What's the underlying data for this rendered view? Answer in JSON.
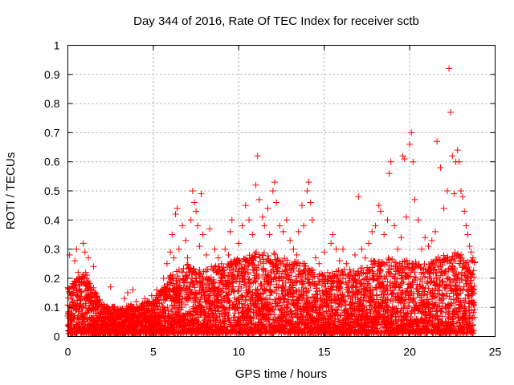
{
  "chart_data": {
    "type": "scatter",
    "title": "Day 344 of 2016, Rate Of TEC Index for receiver sctb",
    "xlabel": "GPS time / hours",
    "ylabel": "ROTI / TECUs",
    "xlim": [
      0,
      25
    ],
    "ylim": [
      0,
      1
    ],
    "xticks": [
      0,
      5,
      10,
      15,
      20,
      25
    ],
    "xtick_labels": [
      "0",
      "5",
      "10",
      "15",
      "20",
      "25"
    ],
    "yticks": [
      0,
      0.1,
      0.2,
      0.3,
      0.4,
      0.5,
      0.6,
      0.7,
      0.8,
      0.9,
      1
    ],
    "ytick_labels": [
      "0",
      "0.1",
      "0.2",
      "0.3",
      "0.4",
      "0.5",
      "0.6",
      "0.7",
      "0.8",
      "0.9",
      "1"
    ],
    "grid": true,
    "marker": "+",
    "color": "#ff0000",
    "series": [
      {
        "name": "ROTI",
        "points": [
          [
            0.1,
            0.28
          ],
          [
            0.2,
            0.17
          ],
          [
            0.3,
            0.12
          ],
          [
            0.4,
            0.26
          ],
          [
            0.5,
            0.3
          ],
          [
            0.6,
            0.22
          ],
          [
            0.8,
            0.15
          ],
          [
            0.9,
            0.32
          ],
          [
            1.0,
            0.29
          ],
          [
            1.1,
            0.2
          ],
          [
            1.2,
            0.27
          ],
          [
            1.3,
            0.12
          ],
          [
            1.5,
            0.24
          ],
          [
            1.7,
            0.1
          ],
          [
            1.9,
            0.08
          ],
          [
            2.1,
            0.11
          ],
          [
            2.3,
            0.09
          ],
          [
            2.5,
            0.17
          ],
          [
            2.7,
            0.1
          ],
          [
            2.9,
            0.07
          ],
          [
            3.1,
            0.09
          ],
          [
            3.3,
            0.13
          ],
          [
            3.5,
            0.15
          ],
          [
            3.7,
            0.11
          ],
          [
            3.8,
            0.16
          ],
          [
            4.0,
            0.12
          ],
          [
            4.2,
            0.1
          ],
          [
            4.5,
            0.13
          ],
          [
            4.7,
            0.09
          ],
          [
            4.9,
            0.14
          ],
          [
            5.0,
            0.11
          ],
          [
            5.2,
            0.16
          ],
          [
            5.4,
            0.15
          ],
          [
            5.6,
            0.2
          ],
          [
            5.8,
            0.25
          ],
          [
            6.0,
            0.29
          ],
          [
            6.1,
            0.35
          ],
          [
            6.2,
            0.27
          ],
          [
            6.3,
            0.42
          ],
          [
            6.4,
            0.44
          ],
          [
            6.5,
            0.3
          ],
          [
            6.7,
            0.38
          ],
          [
            6.9,
            0.33
          ],
          [
            7.0,
            0.27
          ],
          [
            7.2,
            0.4
          ],
          [
            7.3,
            0.5
          ],
          [
            7.4,
            0.46
          ],
          [
            7.5,
            0.43
          ],
          [
            7.6,
            0.38
          ],
          [
            7.7,
            0.31
          ],
          [
            7.8,
            0.49
          ],
          [
            7.9,
            0.35
          ],
          [
            8.1,
            0.28
          ],
          [
            8.3,
            0.37
          ],
          [
            8.4,
            0.24
          ],
          [
            8.6,
            0.3
          ],
          [
            8.8,
            0.27
          ],
          [
            9.0,
            0.2
          ],
          [
            9.2,
            0.3
          ],
          [
            9.4,
            0.28
          ],
          [
            9.5,
            0.36
          ],
          [
            9.6,
            0.4
          ],
          [
            9.8,
            0.25
          ],
          [
            10.0,
            0.32
          ],
          [
            10.2,
            0.38
          ],
          [
            10.4,
            0.45
          ],
          [
            10.6,
            0.4
          ],
          [
            10.8,
            0.35
          ],
          [
            11.0,
            0.52
          ],
          [
            11.1,
            0.62
          ],
          [
            11.2,
            0.47
          ],
          [
            11.4,
            0.41
          ],
          [
            11.5,
            0.38
          ],
          [
            11.7,
            0.44
          ],
          [
            11.8,
            0.35
          ],
          [
            12.0,
            0.5
          ],
          [
            12.1,
            0.53
          ],
          [
            12.2,
            0.46
          ],
          [
            12.4,
            0.38
          ],
          [
            12.6,
            0.36
          ],
          [
            12.8,
            0.4
          ],
          [
            13.0,
            0.33
          ],
          [
            13.2,
            0.3
          ],
          [
            13.4,
            0.28
          ],
          [
            13.5,
            0.36
          ],
          [
            13.7,
            0.45
          ],
          [
            13.8,
            0.38
          ],
          [
            14.0,
            0.5
          ],
          [
            14.1,
            0.53
          ],
          [
            14.2,
            0.46
          ],
          [
            14.3,
            0.4
          ],
          [
            14.5,
            0.27
          ],
          [
            14.7,
            0.25
          ],
          [
            15.0,
            0.29
          ],
          [
            15.2,
            0.22
          ],
          [
            15.4,
            0.32
          ],
          [
            15.5,
            0.35
          ],
          [
            15.7,
            0.3
          ],
          [
            15.9,
            0.26
          ],
          [
            16.1,
            0.3
          ],
          [
            16.3,
            0.25
          ],
          [
            16.5,
            0.23
          ],
          [
            16.8,
            0.28
          ],
          [
            17.0,
            0.48
          ],
          [
            17.2,
            0.3
          ],
          [
            17.4,
            0.27
          ],
          [
            17.6,
            0.32
          ],
          [
            17.8,
            0.36
          ],
          [
            18.0,
            0.38
          ],
          [
            18.2,
            0.45
          ],
          [
            18.3,
            0.43
          ],
          [
            18.5,
            0.35
          ],
          [
            18.7,
            0.4
          ],
          [
            18.8,
            0.56
          ],
          [
            18.9,
            0.6
          ],
          [
            19.1,
            0.38
          ],
          [
            19.3,
            0.3
          ],
          [
            19.5,
            0.34
          ],
          [
            19.6,
            0.62
          ],
          [
            19.7,
            0.61
          ],
          [
            19.8,
            0.41
          ],
          [
            20.0,
            0.66
          ],
          [
            20.1,
            0.7
          ],
          [
            20.2,
            0.6
          ],
          [
            20.3,
            0.47
          ],
          [
            20.5,
            0.4
          ],
          [
            20.7,
            0.3
          ],
          [
            20.9,
            0.34
          ],
          [
            21.1,
            0.31
          ],
          [
            21.3,
            0.33
          ],
          [
            21.5,
            0.36
          ],
          [
            21.6,
            0.67
          ],
          [
            21.8,
            0.58
          ],
          [
            22.0,
            0.44
          ],
          [
            22.2,
            0.5
          ],
          [
            22.3,
            0.92
          ],
          [
            22.4,
            0.77
          ],
          [
            22.5,
            0.62
          ],
          [
            22.6,
            0.49
          ],
          [
            22.7,
            0.6
          ],
          [
            22.8,
            0.64
          ],
          [
            22.9,
            0.6
          ],
          [
            23.0,
            0.5
          ],
          [
            23.1,
            0.48
          ],
          [
            23.2,
            0.43
          ],
          [
            23.3,
            0.38
          ],
          [
            23.4,
            0.35
          ],
          [
            23.5,
            0.31
          ],
          [
            23.6,
            0.29
          ],
          [
            23.7,
            0.27
          ]
        ],
        "background_level": [
          [
            0,
            0.16
          ],
          [
            1,
            0.22
          ],
          [
            2,
            0.1
          ],
          [
            3,
            0.09
          ],
          [
            4,
            0.1
          ],
          [
            5,
            0.12
          ],
          [
            6,
            0.2
          ],
          [
            7,
            0.24
          ],
          [
            8,
            0.22
          ],
          [
            9,
            0.24
          ],
          [
            10,
            0.26
          ],
          [
            11,
            0.28
          ],
          [
            12,
            0.28
          ],
          [
            13,
            0.25
          ],
          [
            14,
            0.24
          ],
          [
            15,
            0.2
          ],
          [
            16,
            0.22
          ],
          [
            17,
            0.22
          ],
          [
            18,
            0.26
          ],
          [
            19,
            0.26
          ],
          [
            20,
            0.25
          ],
          [
            21,
            0.24
          ],
          [
            22,
            0.28
          ],
          [
            23,
            0.28
          ],
          [
            23.8,
            0.25
          ]
        ]
      }
    ]
  }
}
